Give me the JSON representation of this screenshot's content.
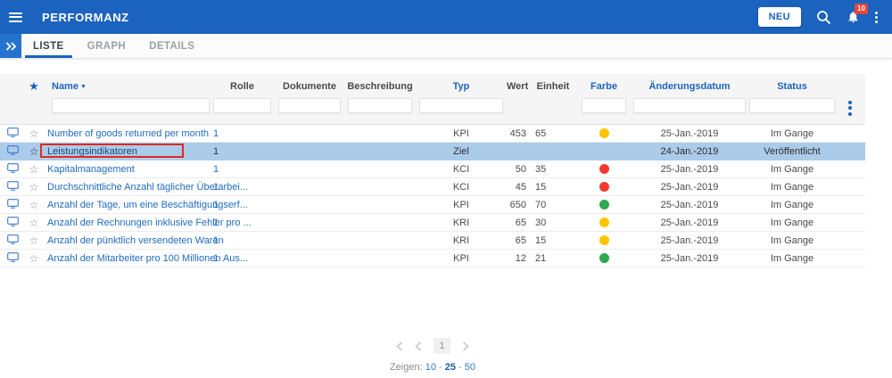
{
  "app_bar": {
    "title": "PERFORMANZ",
    "new_button_label": "NEU",
    "notification_count": "10"
  },
  "tabs": [
    {
      "label": "LISTE",
      "active": true
    },
    {
      "label": "GRAPH",
      "active": false
    },
    {
      "label": "DETAILS",
      "active": false
    }
  ],
  "icons": {
    "star_filled": "★",
    "star_outline": "☆",
    "sort_desc_arrow": "▼"
  },
  "table": {
    "headers": {
      "name": "Name",
      "rolle": "Rolle",
      "dokumente": "Dokumente",
      "beschreibung": "Beschreibung",
      "typ": "Typ",
      "wert": "Wert",
      "einheit": "Einheit",
      "farbe": "Farbe",
      "aenderungsdatum": "Änderungsdatum",
      "status": "Status"
    },
    "rows": [
      {
        "name": "Number of goods returned per month",
        "rolle": "1",
        "typ": "KPI",
        "wert": "453",
        "einheit": "65",
        "farbe": "yellow",
        "datum": "25-Jan.-2019",
        "status": "Im Gange",
        "selected": false,
        "annotated": false
      },
      {
        "name": "Leistungsindikatoren",
        "rolle": "1",
        "typ": "Ziel",
        "wert": "",
        "einheit": "",
        "farbe": "",
        "datum": "24-Jan.-2019",
        "status": "Veröffentlicht",
        "selected": true,
        "annotated": true
      },
      {
        "name": "Kapitalmanagement",
        "rolle": "1",
        "typ": "KCI",
        "wert": "50",
        "einheit": "35",
        "farbe": "red",
        "datum": "25-Jan.-2019",
        "status": "Im Gange",
        "selected": false,
        "annotated": false
      },
      {
        "name": "Durchschnittliche Anzahl täglicher Überarbei...",
        "rolle": "1",
        "typ": "KCI",
        "wert": "45",
        "einheit": "15",
        "farbe": "red",
        "datum": "25-Jan.-2019",
        "status": "Im Gange",
        "selected": false,
        "annotated": false
      },
      {
        "name": "Anzahl der Tage, um eine Beschäftigungserf...",
        "rolle": "1",
        "typ": "KPI",
        "wert": "650",
        "einheit": "70",
        "farbe": "green",
        "datum": "25-Jan.-2019",
        "status": "Im Gange",
        "selected": false,
        "annotated": false
      },
      {
        "name": "Anzahl der Rechnungen inklusive Fehler pro ...",
        "rolle": "1",
        "typ": "KRI",
        "wert": "65",
        "einheit": "30",
        "farbe": "yellow",
        "datum": "25-Jan.-2019",
        "status": "Im Gange",
        "selected": false,
        "annotated": false
      },
      {
        "name": "Anzahl der pünktlich versendeten Waren",
        "rolle": "1",
        "typ": "KRI",
        "wert": "65",
        "einheit": "15",
        "farbe": "yellow",
        "datum": "25-Jan.-2019",
        "status": "Im Gange",
        "selected": false,
        "annotated": false
      },
      {
        "name": "Anzahl der Mitarbeiter pro 100 Millionen Aus...",
        "rolle": "1",
        "typ": "KPI",
        "wert": "12",
        "einheit": "21",
        "farbe": "green",
        "datum": "25-Jan.-2019",
        "status": "Im Gange",
        "selected": false,
        "annotated": false
      }
    ]
  },
  "pagination": {
    "current_page": "1",
    "show_label": "Zeigen:",
    "page_sizes": [
      "10",
      "25",
      "50"
    ],
    "selected_size": "25"
  },
  "colors": {
    "appbar": "#1B63BE",
    "selected_row": "#ABCBEA",
    "annotation": "#E02B20",
    "yellow": "#FFC400",
    "red": "#F23B2F",
    "green": "#2FA84F"
  }
}
